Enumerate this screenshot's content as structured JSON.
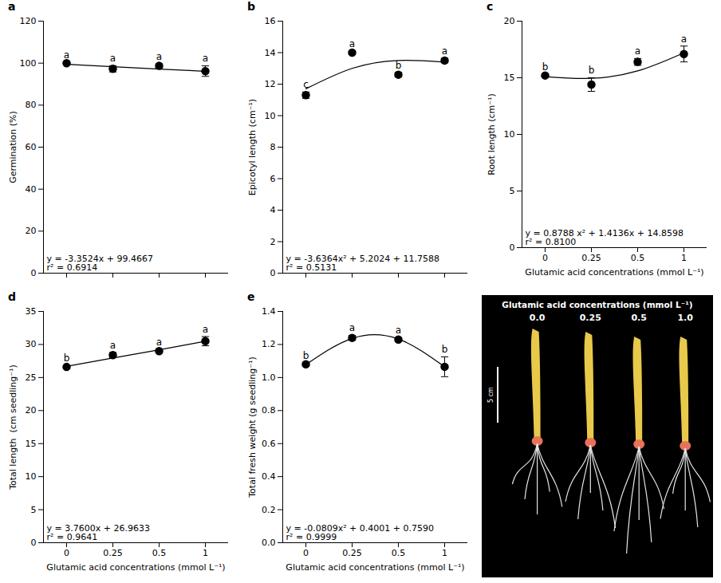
{
  "chart_data": [
    {
      "type": "scatter",
      "letter": "a",
      "categories": [
        "0",
        "0.25",
        "0.5",
        "1"
      ],
      "values": [
        100,
        97.3,
        98.7,
        96.2
      ],
      "errors": [
        0.5,
        1.5,
        1.0,
        2.5
      ],
      "significance": [
        "a",
        "a",
        "a",
        "a"
      ],
      "trend": {
        "values": [
          99.5,
          98.3,
          97.2,
          96.1
        ],
        "equation": "y = -3.3524x + 99.4667",
        "r2": "r² = 0.6914"
      },
      "y_label": "Germination (%)",
      "ylim": [
        0,
        120
      ],
      "yticks": [
        0,
        20,
        40,
        60,
        80,
        100,
        120
      ],
      "tick_labels": "y",
      "color": "#000000",
      "marker": "circle",
      "line_style": "solid"
    },
    {
      "type": "scatter",
      "letter": "b",
      "categories": [
        "0",
        "0.25",
        "0.5",
        "1"
      ],
      "values": [
        11.3,
        14.0,
        12.6,
        13.5
      ],
      "errors": [
        0.2,
        0.1,
        0.15,
        0.15
      ],
      "significance": [
        "c",
        "a",
        "b",
        "a"
      ],
      "trend": {
        "values": [
          11.7,
          13.0,
          13.5,
          13.4
        ],
        "equation": "y = -3.6364x² + 5.2024 + 11.7588",
        "r2": "r² = 0.5131"
      },
      "y_label": "Epicotyl length (cm⁻¹)",
      "ylim": [
        0,
        16
      ],
      "yticks": [
        0,
        2,
        4,
        6,
        8,
        10,
        12,
        14,
        16
      ],
      "tick_labels": "y",
      "color": "#000000",
      "marker": "circle",
      "line_style": "solid"
    },
    {
      "type": "scatter",
      "letter": "c",
      "categories": [
        "0",
        "0.25",
        "0.5",
        "1"
      ],
      "values": [
        15.2,
        14.4,
        16.4,
        17.1
      ],
      "errors": [
        0.1,
        0.6,
        0.3,
        0.7
      ],
      "significance": [
        "b",
        "b",
        "a",
        "a"
      ],
      "trend": {
        "values": [
          15.1,
          14.95,
          15.6,
          17.2
        ],
        "equation": "y = 0.8788 x² + 1.4136x + 14.8598",
        "r2": "r² = 0.8100"
      },
      "y_label": "Root length (cm⁻¹)",
      "x_label": "Glutamic acid concentrations (mmol L⁻¹)",
      "ylim": [
        0,
        20
      ],
      "yticks": [
        0,
        5,
        10,
        15,
        20
      ],
      "color": "#000000",
      "marker": "circle",
      "line_style": "solid"
    },
    {
      "type": "scatter",
      "letter": "d",
      "categories": [
        "0",
        "0.25",
        "0.5",
        "1"
      ],
      "values": [
        26.6,
        28.4,
        29.0,
        30.5
      ],
      "errors": [
        0.2,
        0.4,
        0.3,
        0.7
      ],
      "significance": [
        "b",
        "a",
        "a",
        "a"
      ],
      "trend": {
        "values": [
          26.7,
          27.95,
          29.2,
          30.5
        ],
        "equation": "y = 3.7600x + 26.9633",
        "r2": "r² = 0.9641"
      },
      "y_label": "Total length  (cm seedling⁻¹)",
      "x_label": "Glutamic acid concentrations (mmol L⁻¹)",
      "ylim": [
        0,
        35
      ],
      "yticks": [
        0,
        5,
        10,
        15,
        20,
        25,
        30,
        35
      ],
      "color": "#000000",
      "marker": "circle",
      "line_style": "solid"
    },
    {
      "type": "scatter",
      "letter": "e",
      "categories": [
        "0",
        "0.25",
        "0.5",
        "1"
      ],
      "values": [
        1.08,
        1.24,
        1.23,
        1.065
      ],
      "errors": [
        0.01,
        0.015,
        0.01,
        0.06
      ],
      "significance": [
        "b",
        "a",
        "a",
        "b"
      ],
      "trend": {
        "values": [
          1.078,
          1.237,
          1.233,
          1.065
        ],
        "equation": "y = -0.0809x² + 0.4001 + 0.7590",
        "r2": "r² = 0.9999"
      },
      "y_label": "Total fresh weight (g seedling⁻¹)",
      "x_label": "Glutamic acid concentrations (mmol L⁻¹)",
      "ylim": [
        0,
        1.4
      ],
      "yticks": [
        {
          "value": 0,
          "label": "0.0"
        },
        0.2,
        0.4,
        0.6,
        0.8,
        {
          "value": 1,
          "label": "1.0"
        },
        1.2,
        1.4
      ],
      "color": "#000000",
      "marker": "circle",
      "line_style": "solid"
    }
  ],
  "photo": {
    "title": "Glutamic acid concentrations (mmol L⁻¹)",
    "labels": [
      "0.0",
      "0.25",
      "0.5",
      "1.0"
    ],
    "scale_bar": "5 cm"
  }
}
